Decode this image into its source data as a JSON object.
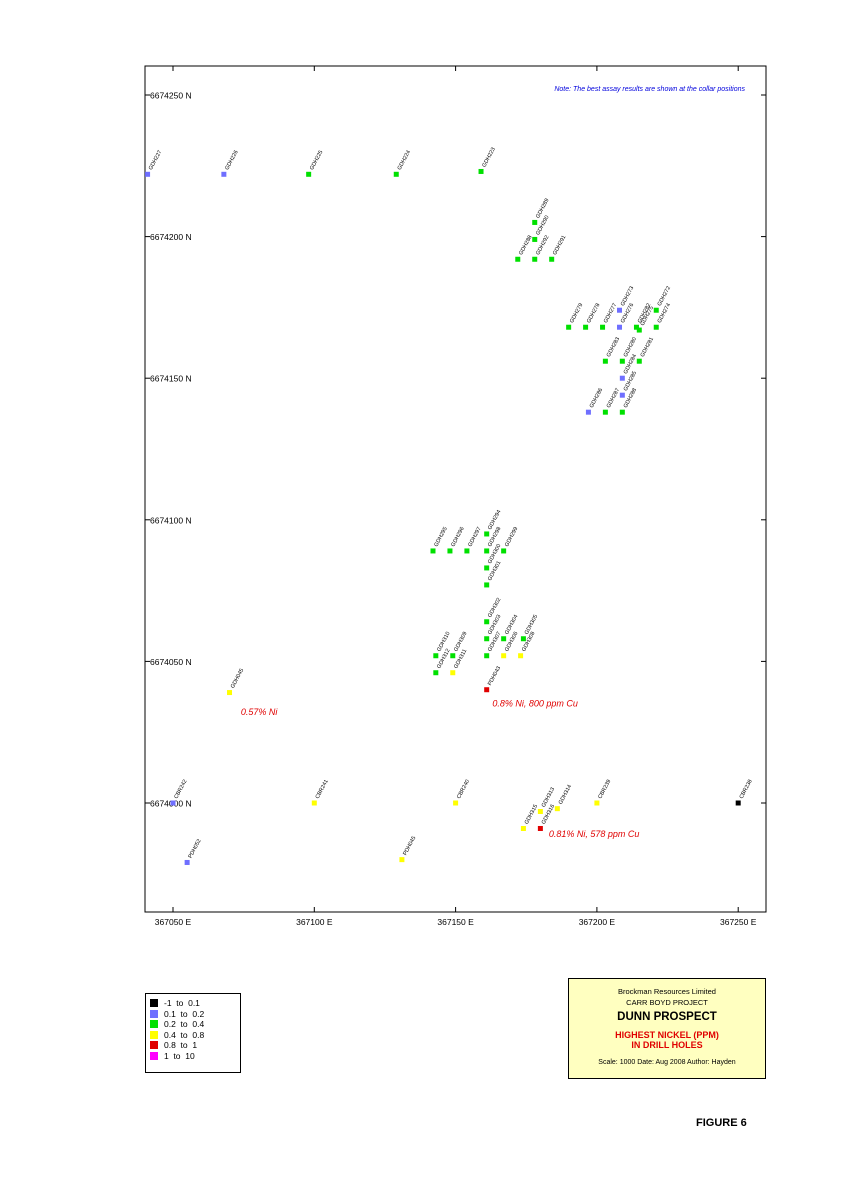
{
  "map": {
    "note": "Note: The best assay results are shown at the collar positions",
    "northing_labels": [
      "6674250 N",
      "6674200 N",
      "6674150 N",
      "6674100 N",
      "6674050 N",
      "6674000 N"
    ],
    "northing_values": [
      6674250,
      6674200,
      6674150,
      6674100,
      6674050,
      6674000
    ],
    "easting_labels": [
      "367050 E",
      "367100 E",
      "367150 E",
      "367200 E",
      "367250 E"
    ],
    "easting_values": [
      367050,
      367100,
      367150,
      367200,
      367250
    ],
    "annotations": [
      {
        "text": "0.57% Ni",
        "e": 367074,
        "n": 6674031
      },
      {
        "text": "0.8% Ni, 800 ppm Cu",
        "e": 367163,
        "n": 6674034
      },
      {
        "text": "0.81% Ni, 578 ppm Cu",
        "e": 367183,
        "n": 6673988
      }
    ],
    "collars": [
      {
        "id": "GDH227",
        "e": 367041,
        "n": 6674222,
        "c": "blue"
      },
      {
        "id": "GDH226",
        "e": 367068,
        "n": 6674222,
        "c": "blue"
      },
      {
        "id": "GDH225",
        "e": 367098,
        "n": 6674222,
        "c": "green"
      },
      {
        "id": "GDH224",
        "e": 367129,
        "n": 6674222,
        "c": "green"
      },
      {
        "id": "GDH223",
        "e": 367159,
        "n": 6674223,
        "c": "green"
      },
      {
        "id": "GDH289",
        "e": 367178,
        "n": 6674205,
        "c": "green"
      },
      {
        "id": "GDH290",
        "e": 367178,
        "n": 6674199,
        "c": "green"
      },
      {
        "id": "GDH288",
        "e": 367172,
        "n": 6674192,
        "c": "green"
      },
      {
        "id": "GDH292",
        "e": 367178,
        "n": 6674192,
        "c": "green"
      },
      {
        "id": "GDH291",
        "e": 367184,
        "n": 6674192,
        "c": "green"
      },
      {
        "id": "GDH279",
        "e": 367190,
        "n": 6674168,
        "c": "green"
      },
      {
        "id": "GDH278",
        "e": 367196,
        "n": 6674168,
        "c": "green"
      },
      {
        "id": "GDH277",
        "e": 367202,
        "n": 6674168,
        "c": "green"
      },
      {
        "id": "GDH273",
        "e": 367208,
        "n": 6674174,
        "c": "blue"
      },
      {
        "id": "GDH276",
        "e": 367208,
        "n": 6674168,
        "c": "blue"
      },
      {
        "id": "GDH282",
        "e": 367214,
        "n": 6674168,
        "c": "green"
      },
      {
        "id": "GDH272",
        "e": 367221,
        "n": 6674174,
        "c": "green"
      },
      {
        "id": "GDH275",
        "e": 367215,
        "n": 6674167,
        "c": "green"
      },
      {
        "id": "GDH274",
        "e": 367221,
        "n": 6674168,
        "c": "green"
      },
      {
        "id": "GDH283",
        "e": 367203,
        "n": 6674156,
        "c": "green"
      },
      {
        "id": "GDH280",
        "e": 367209,
        "n": 6674156,
        "c": "green"
      },
      {
        "id": "GDH281",
        "e": 367215,
        "n": 6674156,
        "c": "green"
      },
      {
        "id": "GDH284",
        "e": 367209,
        "n": 6674150,
        "c": "blue"
      },
      {
        "id": "GDH285",
        "e": 367209,
        "n": 6674144,
        "c": "blue"
      },
      {
        "id": "GDH286",
        "e": 367197,
        "n": 6674138,
        "c": "blue"
      },
      {
        "id": "GDH287",
        "e": 367203,
        "n": 6674138,
        "c": "green"
      },
      {
        "id": "GDH288",
        "e": 367209,
        "n": 6674138,
        "c": "green"
      },
      {
        "id": "GDH295",
        "e": 367142,
        "n": 6674089,
        "c": "green"
      },
      {
        "id": "GDH296",
        "e": 367148,
        "n": 6674089,
        "c": "green"
      },
      {
        "id": "GDH297",
        "e": 367154,
        "n": 6674089,
        "c": "green"
      },
      {
        "id": "GDH294",
        "e": 367161,
        "n": 6674095,
        "c": "green"
      },
      {
        "id": "GDH298",
        "e": 367161,
        "n": 6674089,
        "c": "green"
      },
      {
        "id": "GDH299",
        "e": 367167,
        "n": 6674089,
        "c": "green"
      },
      {
        "id": "GDH300",
        "e": 367161,
        "n": 6674083,
        "c": "green"
      },
      {
        "id": "GDH301",
        "e": 367161,
        "n": 6674077,
        "c": "green"
      },
      {
        "id": "GDH302",
        "e": 367161,
        "n": 6674064,
        "c": "green"
      },
      {
        "id": "GDH303",
        "e": 367161,
        "n": 6674058,
        "c": "green"
      },
      {
        "id": "GDH304",
        "e": 367167,
        "n": 6674058,
        "c": "green"
      },
      {
        "id": "GDH305",
        "e": 367174,
        "n": 6674058,
        "c": "green"
      },
      {
        "id": "GDH307",
        "e": 367161,
        "n": 6674052,
        "c": "green"
      },
      {
        "id": "GDH306",
        "e": 367167,
        "n": 6674052,
        "c": "yellow"
      },
      {
        "id": "GDH308",
        "e": 367173,
        "n": 6674052,
        "c": "yellow"
      },
      {
        "id": "GDH310",
        "e": 367143,
        "n": 6674052,
        "c": "green"
      },
      {
        "id": "GDH309",
        "e": 367149,
        "n": 6674052,
        "c": "green"
      },
      {
        "id": "GDH312",
        "e": 367143,
        "n": 6674046,
        "c": "green"
      },
      {
        "id": "GDH311",
        "e": 367149,
        "n": 6674046,
        "c": "yellow"
      },
      {
        "id": "PDH043",
        "e": 367161,
        "n": 6674040,
        "c": "red"
      },
      {
        "id": "GDH045",
        "e": 367070,
        "n": 6674039,
        "c": "yellow"
      },
      {
        "id": "CBR242",
        "e": 367050,
        "n": 6674000,
        "c": "blue"
      },
      {
        "id": "CBR241",
        "e": 367100,
        "n": 6674000,
        "c": "yellow"
      },
      {
        "id": "CBR240",
        "e": 367150,
        "n": 6674000,
        "c": "yellow"
      },
      {
        "id": "GDH313",
        "e": 367180,
        "n": 6673997,
        "c": "yellow"
      },
      {
        "id": "GDH314",
        "e": 367186,
        "n": 6673998,
        "c": "yellow"
      },
      {
        "id": "CBR239",
        "e": 367200,
        "n": 6674000,
        "c": "yellow"
      },
      {
        "id": "CBR238",
        "e": 367250,
        "n": 6674000,
        "c": "black"
      },
      {
        "id": "GDH315",
        "e": 367174,
        "n": 6673991,
        "c": "yellow"
      },
      {
        "id": "GDH316",
        "e": 367180,
        "n": 6673991,
        "c": "red"
      },
      {
        "id": "PDH052",
        "e": 367055,
        "n": 6673979,
        "c": "blue"
      },
      {
        "id": "PDH045",
        "e": 367131,
        "n": 6673980,
        "c": "yellow"
      }
    ]
  },
  "legend": {
    "items": [
      {
        "label": "-1  to  0.1",
        "color": "#000000"
      },
      {
        "label": "0.1  to  0.2",
        "color": "#6f6fff"
      },
      {
        "label": "0.2  to  0.4",
        "color": "#00e000"
      },
      {
        "label": "0.4  to  0.8",
        "color": "#ffff00"
      },
      {
        "label": "0.8  to  1",
        "color": "#e00000"
      },
      {
        "label": "1  to  10",
        "color": "#ff00ff"
      }
    ]
  },
  "colors": {
    "black": "#000000",
    "blue": "#6f6fff",
    "green": "#00e000",
    "yellow": "#ffff00",
    "red": "#e00000",
    "annotation": "#e00000",
    "note": "#0000dd"
  },
  "title_block": {
    "company": "Brockman Resources Limited",
    "project": "CARR BOYD PROJECT",
    "prospect": "DUNN PROSPECT",
    "subtitle_line1": "HIGHEST NICKEL (PPM)",
    "subtitle_line2": "IN DRILL HOLES",
    "footer": "Scale: 1000    Date: Aug 2008    Author: Hayden"
  },
  "figure_label": "FIGURE 6"
}
